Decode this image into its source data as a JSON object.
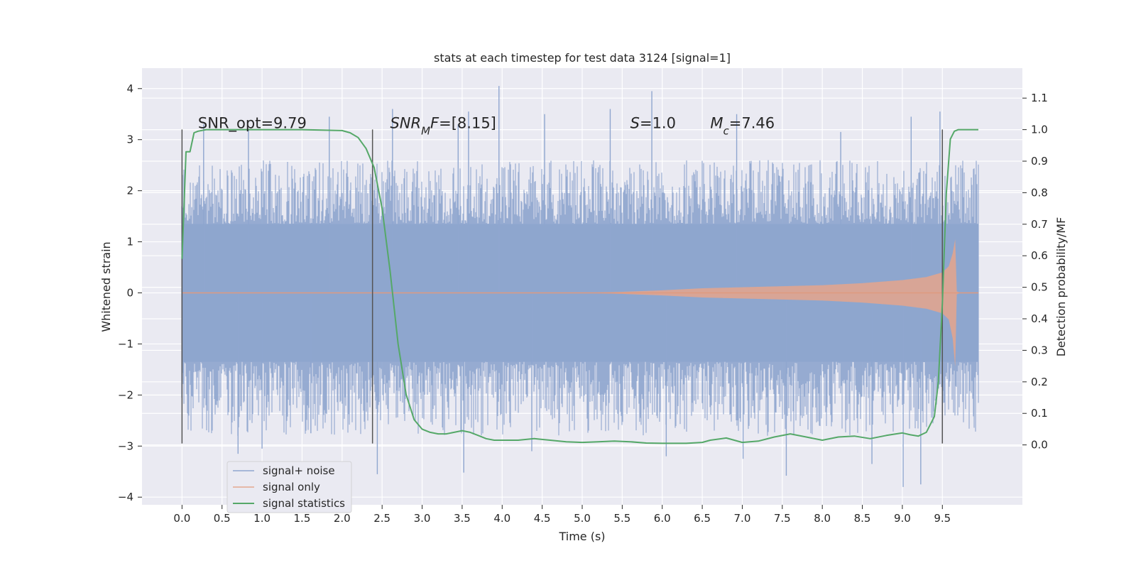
{
  "chart_data": {
    "type": "line",
    "title": "stats at each timestep for test data 3124 [signal=1]",
    "xlabel": "Time (s)",
    "ylabel": "Whitened strain",
    "ylabel_right": "Detection probability/MF",
    "xlim": [
      -0.5,
      10.5
    ],
    "ylim": [
      -4.15,
      4.4
    ],
    "ylim_right": [
      -0.19,
      1.195
    ],
    "x_ticks": [
      0.0,
      0.5,
      1.0,
      1.5,
      2.0,
      2.5,
      3.0,
      3.5,
      4.0,
      4.5,
      5.0,
      5.5,
      6.0,
      6.5,
      7.0,
      7.5,
      8.0,
      8.5,
      9.0,
      9.5
    ],
    "x_tick_labels": [
      "0.0",
      "0.5",
      "1.0",
      "1.5",
      "2.0",
      "2.5",
      "3.0",
      "3.5",
      "4.0",
      "4.5",
      "5.0",
      "5.5",
      "6.0",
      "6.5",
      "7.0",
      "7.5",
      "8.0",
      "8.5",
      "9.0",
      "9.5"
    ],
    "y_ticks": [
      -4,
      -3,
      -2,
      -1,
      0,
      1,
      2,
      3,
      4
    ],
    "y_tick_labels": [
      "−4",
      "−3",
      "−2",
      "−1",
      "0",
      "1",
      "2",
      "3",
      "4"
    ],
    "y_ticks_right": [
      0.0,
      0.1,
      0.2,
      0.3,
      0.4,
      0.5,
      0.6,
      0.7,
      0.8,
      0.9,
      1.0,
      1.1
    ],
    "y_tick_labels_right": [
      "0.0",
      "0.1",
      "0.2",
      "0.3",
      "0.4",
      "0.5",
      "0.6",
      "0.7",
      "0.8",
      "0.9",
      "1.0",
      "1.1"
    ],
    "grid": true,
    "legend_position": "lower-left",
    "series": [
      {
        "name": "signal+ noise",
        "axis": "left",
        "color": "#8fa6cf",
        "style": "dense noise band",
        "x_range": [
          0.0,
          9.95
        ],
        "typical_range": [
          -1.35,
          1.35
        ],
        "dense_range": [
          -2.3,
          2.0
        ],
        "peaks": [
          {
            "x": 0.27,
            "y": 3.3
          },
          {
            "x": 0.83,
            "y": 3.2
          },
          {
            "x": 1.84,
            "y": 3.45
          },
          {
            "x": 2.63,
            "y": 3.6
          },
          {
            "x": 3.45,
            "y": 3.3
          },
          {
            "x": 3.58,
            "y": 3.55
          },
          {
            "x": 3.96,
            "y": 4.05
          },
          {
            "x": 4.53,
            "y": 3.5
          },
          {
            "x": 5.35,
            "y": 3.6
          },
          {
            "x": 5.87,
            "y": 3.95
          },
          {
            "x": 6.93,
            "y": 3.5
          },
          {
            "x": 8.23,
            "y": 3.15
          },
          {
            "x": 9.11,
            "y": 3.45
          },
          {
            "x": 9.47,
            "y": 3.55
          },
          {
            "x": 0.7,
            "y": -3.15
          },
          {
            "x": 1.0,
            "y": -3.05
          },
          {
            "x": 2.44,
            "y": -3.55
          },
          {
            "x": 3.52,
            "y": -3.52
          },
          {
            "x": 4.37,
            "y": -3.1
          },
          {
            "x": 7.01,
            "y": -3.25
          },
          {
            "x": 7.55,
            "y": -3.58
          },
          {
            "x": 8.62,
            "y": -3.35
          },
          {
            "x": 9.01,
            "y": -3.8
          },
          {
            "x": 9.23,
            "y": -3.75
          },
          {
            "x": 1.61,
            "y": -2.75
          },
          {
            "x": 6.05,
            "y": -3.2
          }
        ]
      },
      {
        "name": "signal only",
        "axis": "left",
        "color": "#dd8452",
        "style": "chirp",
        "x": [
          0.0,
          5.0,
          5.5,
          6.0,
          6.5,
          7.0,
          7.5,
          8.0,
          8.5,
          9.0,
          9.3,
          9.5,
          9.58,
          9.63,
          9.66,
          9.68,
          9.72,
          9.95
        ],
        "envelope": [
          0.0,
          0.0,
          0.02,
          0.05,
          0.09,
          0.11,
          0.13,
          0.15,
          0.19,
          0.25,
          0.31,
          0.4,
          0.52,
          0.78,
          1.05,
          0.03,
          0.0,
          0.0
        ],
        "envelope_lower": [
          0.0,
          0.0,
          0.02,
          0.05,
          0.09,
          0.11,
          0.13,
          0.15,
          0.19,
          0.25,
          0.31,
          0.4,
          0.52,
          0.9,
          1.45,
          0.03,
          0.0,
          0.0
        ]
      },
      {
        "name": "signal statistics",
        "axis": "right",
        "color": "#55a868",
        "style": "line",
        "x": [
          0.0,
          0.05,
          0.1,
          0.15,
          0.2,
          0.3,
          0.5,
          1.0,
          1.5,
          2.0,
          2.1,
          2.2,
          2.3,
          2.4,
          2.5,
          2.6,
          2.7,
          2.8,
          2.9,
          3.0,
          3.1,
          3.2,
          3.3,
          3.4,
          3.5,
          3.6,
          3.7,
          3.8,
          3.9,
          4.0,
          4.2,
          4.4,
          4.6,
          4.8,
          5.0,
          5.2,
          5.4,
          5.6,
          5.8,
          6.0,
          6.3,
          6.5,
          6.6,
          6.8,
          7.0,
          7.2,
          7.4,
          7.6,
          7.8,
          8.0,
          8.2,
          8.4,
          8.6,
          8.8,
          9.0,
          9.1,
          9.2,
          9.3,
          9.4,
          9.45,
          9.5,
          9.55,
          9.6,
          9.65,
          9.7,
          9.8,
          9.95
        ],
        "values": [
          0.59,
          0.93,
          0.93,
          0.99,
          0.995,
          1.0,
          1.0,
          1.0,
          1.0,
          0.997,
          0.99,
          0.975,
          0.94,
          0.88,
          0.75,
          0.55,
          0.32,
          0.16,
          0.08,
          0.05,
          0.04,
          0.035,
          0.035,
          0.04,
          0.045,
          0.04,
          0.03,
          0.02,
          0.015,
          0.015,
          0.015,
          0.02,
          0.015,
          0.01,
          0.008,
          0.01,
          0.012,
          0.01,
          0.006,
          0.005,
          0.005,
          0.008,
          0.015,
          0.022,
          0.008,
          0.012,
          0.025,
          0.035,
          0.025,
          0.015,
          0.025,
          0.028,
          0.02,
          0.03,
          0.038,
          0.032,
          0.028,
          0.04,
          0.09,
          0.2,
          0.45,
          0.8,
          0.97,
          0.995,
          1.0,
          1.0,
          1.0
        ]
      }
    ],
    "vertical_lines": [
      {
        "x": 0.0,
        "y_from": -2.95,
        "y_to": 3.2
      },
      {
        "x": 2.38,
        "y_from": -2.95,
        "y_to": 3.2
      },
      {
        "x": 9.5,
        "y_from": -2.95,
        "y_to": 3.2
      }
    ],
    "annotations": [
      {
        "x": 0.2,
        "y": 3.2,
        "parts": [
          {
            "t": "SNR_opt=9.79"
          }
        ]
      },
      {
        "x": 2.6,
        "y": 3.2,
        "parts": [
          {
            "t": "SNR",
            "i": true
          },
          {
            "t": "M",
            "i": true,
            "sub": true
          },
          {
            "t": "F",
            "i": true
          },
          {
            "t": "=[8.15]"
          }
        ]
      },
      {
        "x": 5.6,
        "y": 3.2,
        "parts": [
          {
            "t": "S",
            "i": true
          },
          {
            "t": "=1.0"
          }
        ]
      },
      {
        "x": 6.6,
        "y": 3.2,
        "parts": [
          {
            "t": "M",
            "i": true
          },
          {
            "t": "c",
            "i": true,
            "sub": true
          },
          {
            "t": "=7.46"
          }
        ]
      }
    ],
    "legend": [
      "signal+ noise",
      "signal only",
      "signal statistics"
    ]
  }
}
